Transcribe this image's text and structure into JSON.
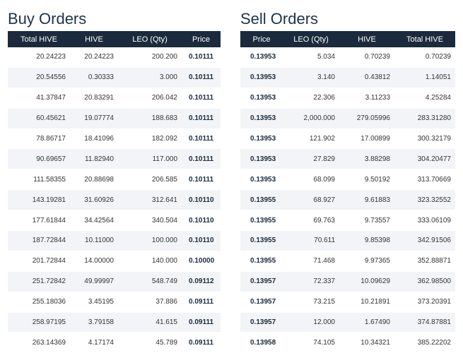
{
  "buy": {
    "title": "Buy Orders",
    "columns": [
      "Total HIVE",
      "HIVE",
      "LEO (Qty)",
      "Price"
    ],
    "rows": [
      [
        "20.24223",
        "20.24223",
        "200.200",
        "0.10111"
      ],
      [
        "20.54556",
        "0.30333",
        "3.000",
        "0.10111"
      ],
      [
        "41.37847",
        "20.83291",
        "206.042",
        "0.10111"
      ],
      [
        "60.45621",
        "19.07774",
        "188.683",
        "0.10111"
      ],
      [
        "78.86717",
        "18.41096",
        "182.092",
        "0.10111"
      ],
      [
        "90.69657",
        "11.82940",
        "117.000",
        "0.10111"
      ],
      [
        "111.58355",
        "20.88698",
        "206.585",
        "0.10111"
      ],
      [
        "143.19281",
        "31.60926",
        "312.641",
        "0.10110"
      ],
      [
        "177.61844",
        "34.42564",
        "340.504",
        "0.10110"
      ],
      [
        "187.72844",
        "10.11000",
        "100.000",
        "0.10110"
      ],
      [
        "201.72844",
        "14.00000",
        "140.000",
        "0.10000"
      ],
      [
        "251.72842",
        "49.99997",
        "548.749",
        "0.09112"
      ],
      [
        "255.18036",
        "3.45195",
        "37.886",
        "0.09111"
      ],
      [
        "258.97195",
        "3.79158",
        "41.615",
        "0.09111"
      ],
      [
        "263.14369",
        "4.17174",
        "45.789",
        "0.09111"
      ]
    ]
  },
  "sell": {
    "title": "Sell Orders",
    "columns": [
      "Price",
      "LEO (Qty)",
      "HIVE",
      "Total HIVE"
    ],
    "rows": [
      [
        "0.13953",
        "5.034",
        "0.70239",
        "0.70239"
      ],
      [
        "0.13953",
        "3.140",
        "0.43812",
        "1.14051"
      ],
      [
        "0.13953",
        "22.306",
        "3.11233",
        "4.25284"
      ],
      [
        "0.13953",
        "2,000.000",
        "279.05996",
        "283.31280"
      ],
      [
        "0.13953",
        "121.902",
        "17.00899",
        "300.32179"
      ],
      [
        "0.13953",
        "27.829",
        "3.88298",
        "304.20477"
      ],
      [
        "0.13953",
        "68.099",
        "9.50192",
        "313.70669"
      ],
      [
        "0.13955",
        "68.927",
        "9.61883",
        "323.32552"
      ],
      [
        "0.13955",
        "69.763",
        "9.73557",
        "333.06109"
      ],
      [
        "0.13955",
        "70.611",
        "9.85398",
        "342.91506"
      ],
      [
        "0.13955",
        "71.468",
        "9.97365",
        "352.88871"
      ],
      [
        "0.13957",
        "72.337",
        "10.09629",
        "362.98500"
      ],
      [
        "0.13957",
        "73.215",
        "10.21891",
        "373.20391"
      ],
      [
        "0.13957",
        "12.000",
        "1.67490",
        "374.87881"
      ],
      [
        "0.13958",
        "74.105",
        "10.34321",
        "385.22202"
      ]
    ]
  }
}
